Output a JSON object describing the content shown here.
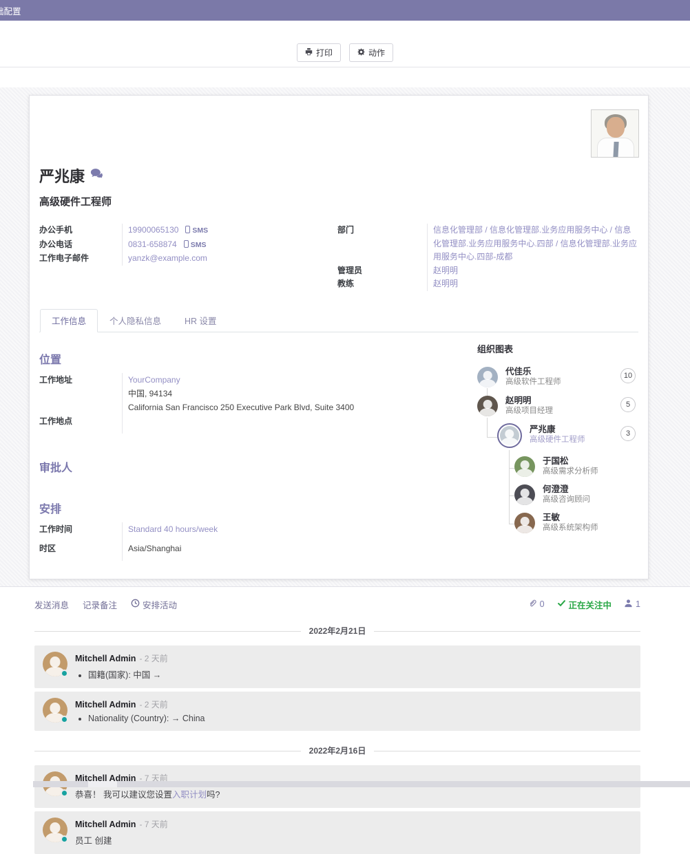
{
  "topbar": {
    "title": "础配置"
  },
  "control_panel": {
    "print": "打印",
    "action": "动作"
  },
  "employee": {
    "name": "严兆康",
    "job_title": "高级硬件工程师",
    "contact_fields": [
      {
        "label": "办公手机",
        "value": "19900065130",
        "sms": "SMS"
      },
      {
        "label": "办公电话",
        "value": "0831-658874",
        "sms": "SMS"
      },
      {
        "label": "工作电子邮件",
        "value": "yanzk@example.com",
        "sms": ""
      }
    ],
    "org_fields": [
      {
        "label": "部门",
        "value": "信息化管理部 / 信息化管理部.业务应用服务中心 / 信息化管理部.业务应用服务中心.四部 / 信息化管理部.业务应用服务中心.四部-成都"
      },
      {
        "label": "管理员",
        "value": "赵明明"
      },
      {
        "label": "教练",
        "value": "赵明明"
      }
    ]
  },
  "tabs": [
    {
      "label": "工作信息",
      "active": true
    },
    {
      "label": "个人隐私信息",
      "active": false
    },
    {
      "label": "HR 设置",
      "active": false
    }
  ],
  "work_tab": {
    "location": {
      "title": "位置",
      "rows": [
        {
          "label": "工作地址",
          "lines": [
            {
              "text": "YourCompany",
              "link": true
            },
            {
              "text": "中国, 94134",
              "link": false
            },
            {
              "text": "California San Francisco 250 Executive Park Blvd, Suite 3400",
              "link": false
            }
          ]
        },
        {
          "label": "工作地点",
          "lines": []
        }
      ]
    },
    "approvers": {
      "title": "审批人"
    },
    "schedule": {
      "title": "安排",
      "rows": [
        {
          "label": "工作时间",
          "lines": [
            {
              "text": "Standard 40 hours/week",
              "link": true
            }
          ]
        },
        {
          "label": "时区",
          "lines": [
            {
              "text": "Asia/Shanghai",
              "link": false
            }
          ]
        }
      ]
    }
  },
  "org_chart": {
    "title": "组织图表",
    "people": [
      {
        "name": "代佳乐",
        "title": "高级软件工程师",
        "badge": "10",
        "level": 0,
        "current": false
      },
      {
        "name": "赵明明",
        "title": "高级项目经理",
        "badge": "5",
        "level": 0,
        "current": false
      },
      {
        "name": "严兆康",
        "title": "高级硬件工程师",
        "badge": "3",
        "level": 1,
        "current": true
      },
      {
        "name": "于国松",
        "title": "高级需求分析师",
        "badge": "",
        "level": 2,
        "current": false
      },
      {
        "name": "何澄澄",
        "title": "高级咨询顾问",
        "badge": "",
        "level": 2,
        "current": false
      },
      {
        "name": "王敏",
        "title": "高级系统架构师",
        "badge": "",
        "level": 2,
        "current": false
      }
    ]
  },
  "chatter": {
    "send_message": "发送消息",
    "log_note": "记录备注",
    "schedule_activity": "安排活动",
    "attachments": "0",
    "following": "正在关注中",
    "followers": "1",
    "groups": [
      {
        "date": "2022年2月21日",
        "messages": [
          {
            "author": "Mitchell Admin",
            "time": "- 2 天前",
            "bullet": true,
            "parts": [
              {
                "text": "国籍(国家): 中国 →",
                "link": false
              }
            ]
          },
          {
            "author": "Mitchell Admin",
            "time": "- 2 天前",
            "bullet": true,
            "parts": [
              {
                "text": "Nationality (Country): → China",
                "link": false
              }
            ]
          }
        ]
      },
      {
        "date": "2022年2月16日",
        "messages": [
          {
            "author": "Mitchell Admin",
            "time": "- 7 天前",
            "bullet": false,
            "parts": [
              {
                "text": "恭喜！ 我可以建议您设置",
                "link": false
              },
              {
                "text": "入职计划",
                "link": true
              },
              {
                "text": "吗?",
                "link": false
              }
            ]
          },
          {
            "author": "Mitchell Admin",
            "time": "- 7 天前",
            "bullet": false,
            "parts": [
              {
                "text": "员工 创建",
                "link": false
              }
            ]
          }
        ]
      }
    ]
  },
  "icons": {
    "print": "printer-icon",
    "action": "gear-icon",
    "name_chat": "speech-bubbles-icon",
    "sms": "mobile-icon",
    "schedule_activity": "clock-icon",
    "attachments": "paperclip-icon",
    "following": "check-icon",
    "followers": "person-icon"
  },
  "colors": {
    "header": "#7b79a8",
    "accent": "#7c7bad",
    "link": "#938fc4",
    "following_green": "#28a745",
    "presence_teal": "#17a2a0"
  }
}
